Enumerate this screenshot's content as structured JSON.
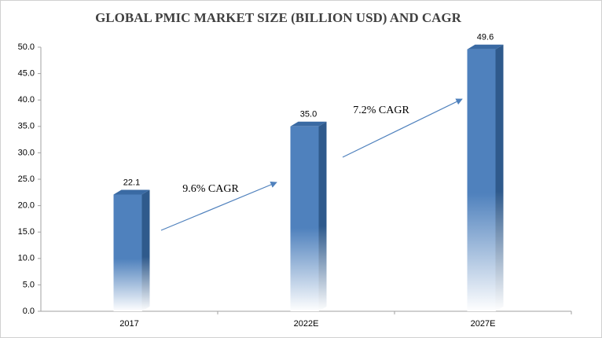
{
  "chart_data": {
    "type": "bar",
    "title": "GLOBAL PMIC MARKET SIZE (BILLION USD) AND CAGR",
    "categories": [
      "2017",
      "2022E",
      "2027E"
    ],
    "values": [
      22.1,
      35.0,
      49.6
    ],
    "value_labels": [
      "22.1",
      "35.0",
      "49.6"
    ],
    "color": "#4f81bd",
    "ylim": [
      0,
      50
    ],
    "yticks": [
      {
        "value": 0,
        "label": "0.0"
      },
      {
        "value": 5,
        "label": "5.0"
      },
      {
        "value": 10,
        "label": "10.0"
      },
      {
        "value": 15,
        "label": "15.0"
      },
      {
        "value": 20,
        "label": "20.0"
      },
      {
        "value": 25,
        "label": "25.0"
      },
      {
        "value": 30,
        "label": "30.0"
      },
      {
        "value": 35,
        "label": "35.0"
      },
      {
        "value": 40,
        "label": "40.0"
      },
      {
        "value": 45,
        "label": "45.0"
      },
      {
        "value": 50,
        "label": "50.0"
      }
    ],
    "annotations": [
      "9.6% CAGR",
      "7.2% CAGR"
    ]
  }
}
